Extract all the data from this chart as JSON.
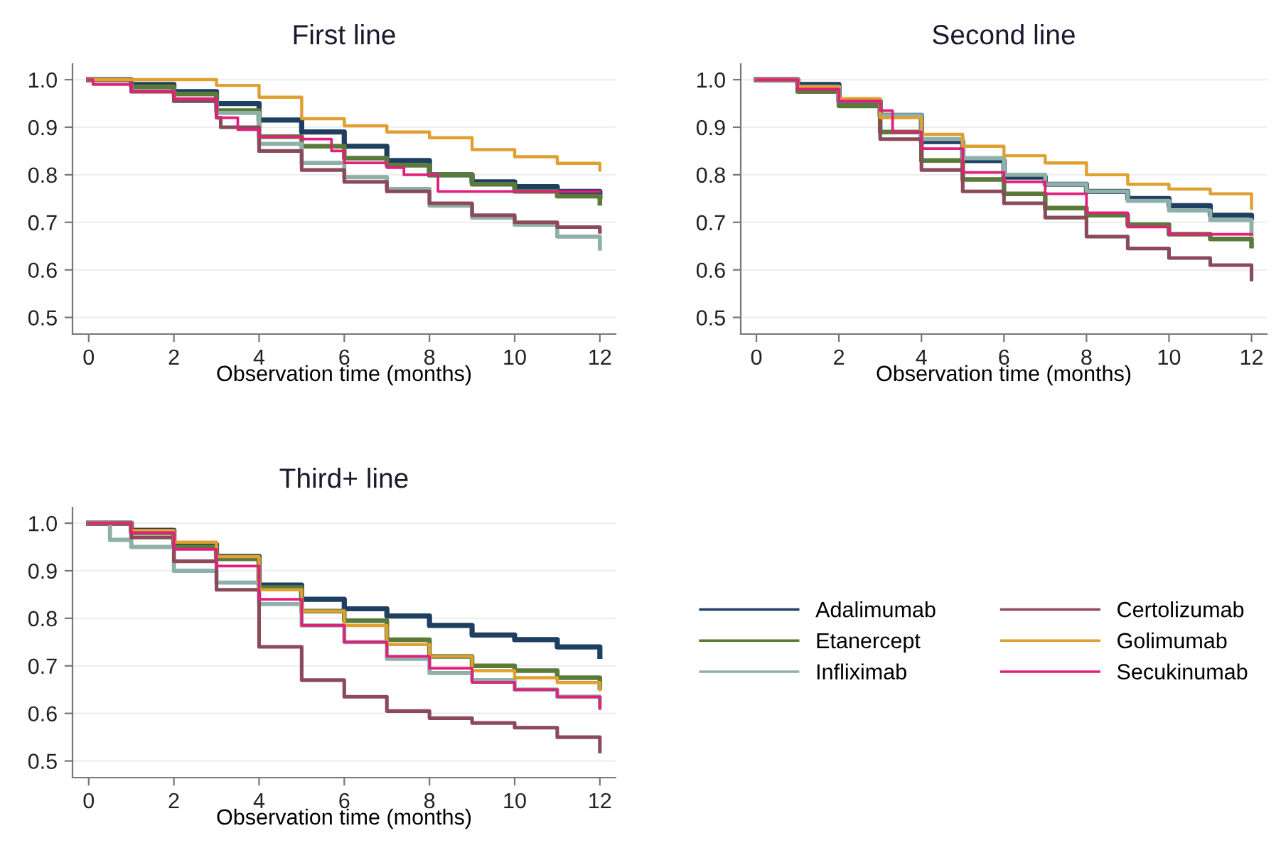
{
  "chart_data": [
    {
      "type": "step",
      "title": "First line",
      "xlabel": "Observation time (months)",
      "xlim": [
        -0.38,
        12.37
      ],
      "ylim": [
        0.465,
        1.033
      ],
      "xticks": [
        0,
        2,
        4,
        6,
        8,
        10,
        12
      ],
      "yticks": [
        {
          "value": 0.5,
          "label": "0.5"
        },
        {
          "value": 0.6,
          "label": "0.6"
        },
        {
          "value": 0.7,
          "label": "0.7"
        },
        {
          "value": 0.8,
          "label": "0.8"
        },
        {
          "value": 0.9,
          "label": "0.9"
        },
        {
          "value": 1.0,
          "label": "1.0"
        }
      ],
      "grid": "y",
      "legend": false,
      "series": [
        {
          "color": "#1f3f60",
          "x": [
            0,
            1,
            2,
            3,
            4,
            5,
            6,
            7,
            8,
            9,
            10,
            11,
            12
          ],
          "values": [
            1,
            0.99,
            0.975,
            0.95,
            0.915,
            0.89,
            0.86,
            0.83,
            0.8,
            0.785,
            0.775,
            0.765,
            0.755
          ]
        },
        {
          "color": "#5a7a3a",
          "x": [
            0,
            1,
            2,
            3,
            4,
            5,
            6,
            7,
            8,
            9,
            10,
            11,
            12
          ],
          "values": [
            1,
            0.985,
            0.97,
            0.935,
            0.88,
            0.86,
            0.835,
            0.82,
            0.8,
            0.78,
            0.765,
            0.755,
            0.74
          ]
        },
        {
          "color": "#8fb0a8",
          "x": [
            0,
            1,
            2,
            3,
            4,
            5,
            6,
            7,
            8,
            9,
            10,
            11,
            12
          ],
          "values": [
            1,
            0.975,
            0.955,
            0.93,
            0.865,
            0.825,
            0.795,
            0.77,
            0.735,
            0.71,
            0.695,
            0.67,
            0.645
          ]
        },
        {
          "color": "#8b4a5a",
          "x": [
            0,
            1,
            2,
            3,
            3.1,
            4,
            5,
            6,
            7,
            8,
            9,
            10,
            11,
            12
          ],
          "values": [
            1,
            0.975,
            0.955,
            0.92,
            0.9,
            0.85,
            0.81,
            0.785,
            0.765,
            0.74,
            0.715,
            0.7,
            0.69,
            0.68
          ]
        },
        {
          "color": "#e0a030",
          "x": [
            0,
            2,
            3,
            4,
            5,
            6,
            7,
            8,
            9,
            10,
            11,
            12
          ],
          "values": [
            1,
            1,
            0.988,
            0.963,
            0.918,
            0.903,
            0.89,
            0.878,
            0.853,
            0.838,
            0.824,
            0.81
          ]
        },
        {
          "color": "#e0207a",
          "x": [
            0,
            0.1,
            1,
            2,
            3,
            3.5,
            4,
            5,
            5.7,
            6,
            7,
            7.4,
            8.2,
            12
          ],
          "values": [
            1,
            0.99,
            0.975,
            0.96,
            0.92,
            0.895,
            0.88,
            0.875,
            0.85,
            0.825,
            0.815,
            0.8,
            0.765,
            0.765
          ]
        }
      ]
    },
    {
      "type": "step",
      "title": "Second line",
      "xlabel": "Observation time (months)",
      "xlim": [
        -0.38,
        12.37
      ],
      "ylim": [
        0.465,
        1.033
      ],
      "xticks": [
        0,
        2,
        4,
        6,
        8,
        10,
        12
      ],
      "yticks": [
        {
          "value": 0.5,
          "label": "0.5"
        },
        {
          "value": 0.6,
          "label": "0.6"
        },
        {
          "value": 0.7,
          "label": "0.7"
        },
        {
          "value": 0.8,
          "label": "0.8"
        },
        {
          "value": 0.9,
          "label": "0.9"
        },
        {
          "value": 1.0,
          "label": "1.0"
        }
      ],
      "grid": "y",
      "legend": false,
      "series": [
        {
          "color": "#1f3f60",
          "x": [
            0,
            1,
            2,
            3,
            4,
            5,
            6,
            7,
            8,
            9,
            10,
            11,
            12
          ],
          "values": [
            1,
            0.99,
            0.955,
            0.925,
            0.87,
            0.83,
            0.795,
            0.78,
            0.765,
            0.75,
            0.735,
            0.715,
            0.71
          ]
        },
        {
          "color": "#5a7a3a",
          "x": [
            0,
            1,
            2,
            3,
            4,
            5,
            6,
            7,
            8,
            9,
            10,
            11,
            12
          ],
          "values": [
            1,
            0.975,
            0.945,
            0.89,
            0.83,
            0.79,
            0.76,
            0.73,
            0.715,
            0.695,
            0.675,
            0.665,
            0.65
          ]
        },
        {
          "color": "#8fb0a8",
          "x": [
            0,
            1,
            2,
            3,
            4,
            5,
            6,
            7,
            8,
            9,
            10,
            11,
            12
          ],
          "values": [
            1,
            0.985,
            0.955,
            0.925,
            0.875,
            0.835,
            0.8,
            0.78,
            0.765,
            0.745,
            0.725,
            0.705,
            0.675
          ]
        },
        {
          "color": "#8b4a5a",
          "x": [
            0,
            1,
            2,
            3,
            4,
            5,
            6,
            7,
            8,
            9,
            10,
            11,
            12
          ],
          "values": [
            1,
            0.98,
            0.955,
            0.875,
            0.81,
            0.765,
            0.74,
            0.71,
            0.67,
            0.645,
            0.625,
            0.61,
            0.58
          ]
        },
        {
          "color": "#e0a030",
          "x": [
            0,
            1,
            2,
            3,
            4,
            5,
            6,
            7,
            8,
            9,
            10,
            11,
            12
          ],
          "values": [
            1,
            0.985,
            0.96,
            0.92,
            0.885,
            0.86,
            0.84,
            0.825,
            0.8,
            0.78,
            0.77,
            0.76,
            0.73
          ]
        },
        {
          "color": "#e0207a",
          "x": [
            0,
            1,
            2,
            3,
            3.3,
            4,
            5,
            6,
            7,
            8,
            9,
            10,
            12
          ],
          "values": [
            1,
            0.98,
            0.955,
            0.935,
            0.89,
            0.855,
            0.805,
            0.785,
            0.76,
            0.72,
            0.69,
            0.675,
            0.675
          ]
        }
      ]
    },
    {
      "type": "step",
      "title": "Third+ line",
      "xlabel": "Observation time (months)",
      "xlim": [
        -0.38,
        12.37
      ],
      "ylim": [
        0.465,
        1.033
      ],
      "xticks": [
        0,
        2,
        4,
        6,
        8,
        10,
        12
      ],
      "yticks": [
        {
          "value": 0.5,
          "label": "0.5"
        },
        {
          "value": 0.6,
          "label": "0.6"
        },
        {
          "value": 0.7,
          "label": "0.7"
        },
        {
          "value": 0.8,
          "label": "0.8"
        },
        {
          "value": 0.9,
          "label": "0.9"
        },
        {
          "value": 1.0,
          "label": "1.0"
        }
      ],
      "grid": "y",
      "legend": "right",
      "series": [
        {
          "name": "Adalimumab",
          "color": "#1f3f60",
          "x": [
            0,
            1,
            2,
            3,
            4,
            5,
            6,
            7,
            8,
            9,
            10,
            11,
            12
          ],
          "values": [
            1,
            0.985,
            0.955,
            0.93,
            0.87,
            0.84,
            0.82,
            0.805,
            0.785,
            0.765,
            0.755,
            0.74,
            0.72
          ]
        },
        {
          "name": "Etanercept",
          "color": "#5a7a3a",
          "x": [
            0,
            1,
            2,
            3,
            4,
            5,
            6,
            7,
            8,
            9,
            10,
            11,
            12
          ],
          "values": [
            1,
            0.98,
            0.95,
            0.925,
            0.865,
            0.815,
            0.795,
            0.755,
            0.72,
            0.7,
            0.69,
            0.675,
            0.655
          ]
        },
        {
          "name": "Infliximab",
          "color": "#8fb0a8",
          "x": [
            0,
            0.5,
            1,
            2,
            3,
            4,
            5,
            6,
            7,
            8,
            9,
            10,
            11,
            12
          ],
          "values": [
            1,
            0.965,
            0.95,
            0.9,
            0.875,
            0.83,
            0.785,
            0.75,
            0.715,
            0.685,
            0.67,
            0.65,
            0.635,
            0.615
          ]
        },
        {
          "name": "Certolizumab",
          "color": "#8b4a5a",
          "x": [
            0,
            1,
            2,
            3,
            4,
            5,
            6,
            7,
            8,
            9,
            10,
            11,
            12
          ],
          "values": [
            1,
            0.97,
            0.92,
            0.86,
            0.74,
            0.67,
            0.635,
            0.605,
            0.59,
            0.58,
            0.57,
            0.55,
            0.52
          ]
        },
        {
          "name": "Golimumab",
          "color": "#e0a030",
          "x": [
            0,
            1,
            2,
            3,
            4,
            5,
            6,
            7,
            8,
            9,
            10,
            11,
            12
          ],
          "values": [
            1,
            0.985,
            0.96,
            0.93,
            0.86,
            0.815,
            0.785,
            0.745,
            0.72,
            0.69,
            0.675,
            0.665,
            0.65
          ]
        },
        {
          "name": "Secukinumab",
          "color": "#e0207a",
          "x": [
            0,
            1,
            2,
            3,
            4,
            5,
            6,
            7,
            8,
            9,
            10,
            11,
            12
          ],
          "values": [
            1,
            0.98,
            0.945,
            0.91,
            0.84,
            0.785,
            0.75,
            0.72,
            0.695,
            0.665,
            0.65,
            0.635,
            0.61
          ]
        }
      ]
    }
  ]
}
